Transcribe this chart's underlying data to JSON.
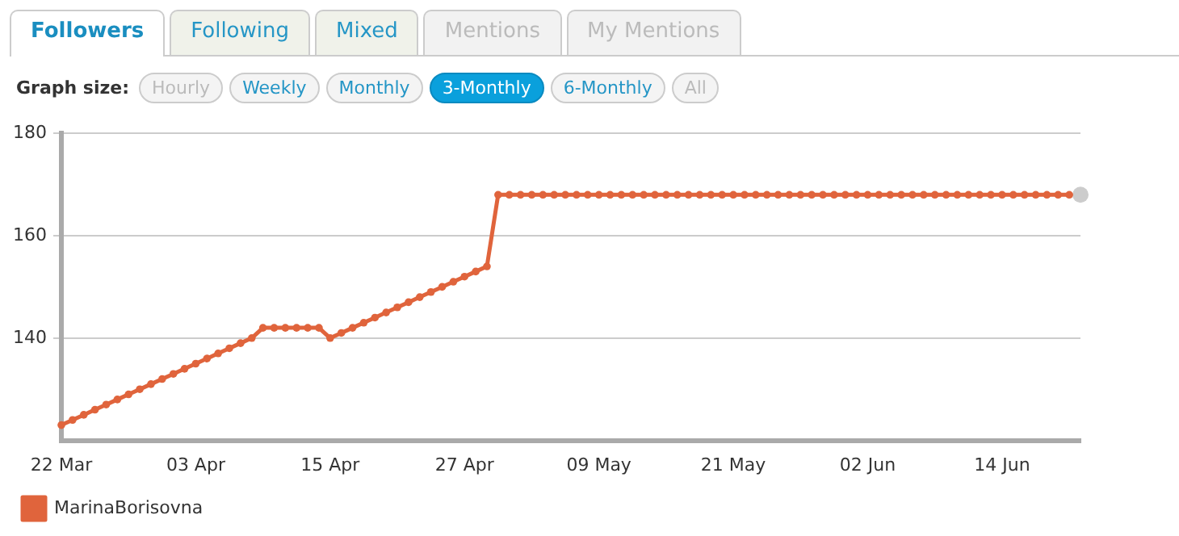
{
  "chart_data": {
    "type": "line",
    "annotations": [
      "Followers",
      "Following",
      "Mixed",
      "Mentions",
      "My Mentions",
      "Graph size:",
      "Hourly",
      "Weekly",
      "Monthly",
      "3-Monthly",
      "6-Monthly",
      "All"
    ],
    "x": [
      "--03-22",
      "--03-23",
      "--03-24",
      "--03-25",
      "--03-26",
      "--03-27",
      "--03-28",
      "--03-29",
      "--03-30",
      "--03-31",
      "--04-01",
      "--04-02",
      "--04-03",
      "--04-04",
      "--04-05",
      "--04-06",
      "--04-07",
      "--04-08",
      "--04-09",
      "--04-10",
      "--04-11",
      "--04-12",
      "--04-13",
      "--04-14",
      "--04-15",
      "--04-16",
      "--04-17",
      "--04-18",
      "--04-19",
      "--04-20",
      "--04-21",
      "--04-22",
      "--04-23",
      "--04-24",
      "--04-25",
      "--04-26",
      "--04-27",
      "--04-28",
      "--04-29",
      "--04-30",
      "--05-01",
      "--05-02",
      "--05-03",
      "--05-04",
      "--05-05",
      "--05-06",
      "--05-07",
      "--05-08",
      "--05-09",
      "--05-10",
      "--05-11",
      "--05-12",
      "--05-13",
      "--05-14",
      "--05-15",
      "--05-16",
      "--05-17",
      "--05-18",
      "--05-19",
      "--05-20",
      "--05-21",
      "--05-22",
      "--05-23",
      "--05-24",
      "--05-25",
      "--05-26",
      "--05-27",
      "--05-28",
      "--05-29",
      "--05-30",
      "--05-31",
      "--06-01",
      "--06-02",
      "--06-03",
      "--06-04",
      "--06-05",
      "--06-06",
      "--06-07",
      "--06-08",
      "--06-09",
      "--06-10",
      "--06-11",
      "--06-12",
      "--06-13",
      "--06-14",
      "--06-15",
      "--06-16",
      "--06-17",
      "--06-18",
      "--06-19",
      "--06-20"
    ],
    "series": [
      {
        "name": "MarinaBorisovna",
        "color": "#e0643c",
        "values": [
          123,
          124,
          125,
          126,
          127,
          128,
          129,
          130,
          131,
          132,
          133,
          134,
          135,
          136,
          137,
          138,
          139,
          140,
          142,
          142,
          142,
          142,
          142,
          142,
          140,
          141,
          142,
          143,
          144,
          145,
          146,
          147,
          148,
          149,
          150,
          151,
          152,
          153,
          154,
          168,
          168,
          168,
          168,
          168,
          168,
          168,
          168,
          168,
          168,
          168,
          168,
          168,
          168,
          168,
          168,
          168,
          168,
          168,
          168,
          168,
          168,
          168,
          168,
          168,
          168,
          168,
          168,
          168,
          168,
          168,
          168,
          168,
          168,
          168,
          168,
          168,
          168,
          168,
          168,
          168,
          168,
          168,
          168,
          168,
          168,
          168,
          168,
          168,
          168,
          168,
          168
        ]
      },
      {
        "type": "scatter",
        "x": [
          "--06-21"
        ],
        "color": "#cccccc",
        "values": [
          168
        ]
      }
    ],
    "xlim": [
      "--03-22",
      "--06-21"
    ],
    "xticks": [
      {
        "value": "--03-22",
        "label": "22 Mar"
      },
      {
        "value": "--04-03",
        "label": "03 Apr"
      },
      {
        "value": "--04-15",
        "label": "15 Apr"
      },
      {
        "value": "--04-27",
        "label": "27 Apr"
      },
      {
        "value": "--05-09",
        "label": "09 May"
      },
      {
        "value": "--05-21",
        "label": "21 May"
      },
      {
        "value": "--06-02",
        "label": "02 Jun"
      },
      {
        "value": "--06-14",
        "label": "14 Jun"
      }
    ],
    "ylim": [
      120,
      180
    ],
    "yticks": [
      140,
      160,
      180
    ],
    "grid": "y",
    "legend": "bottom left",
    "marker": "circle",
    "line_style": "solid"
  }
}
